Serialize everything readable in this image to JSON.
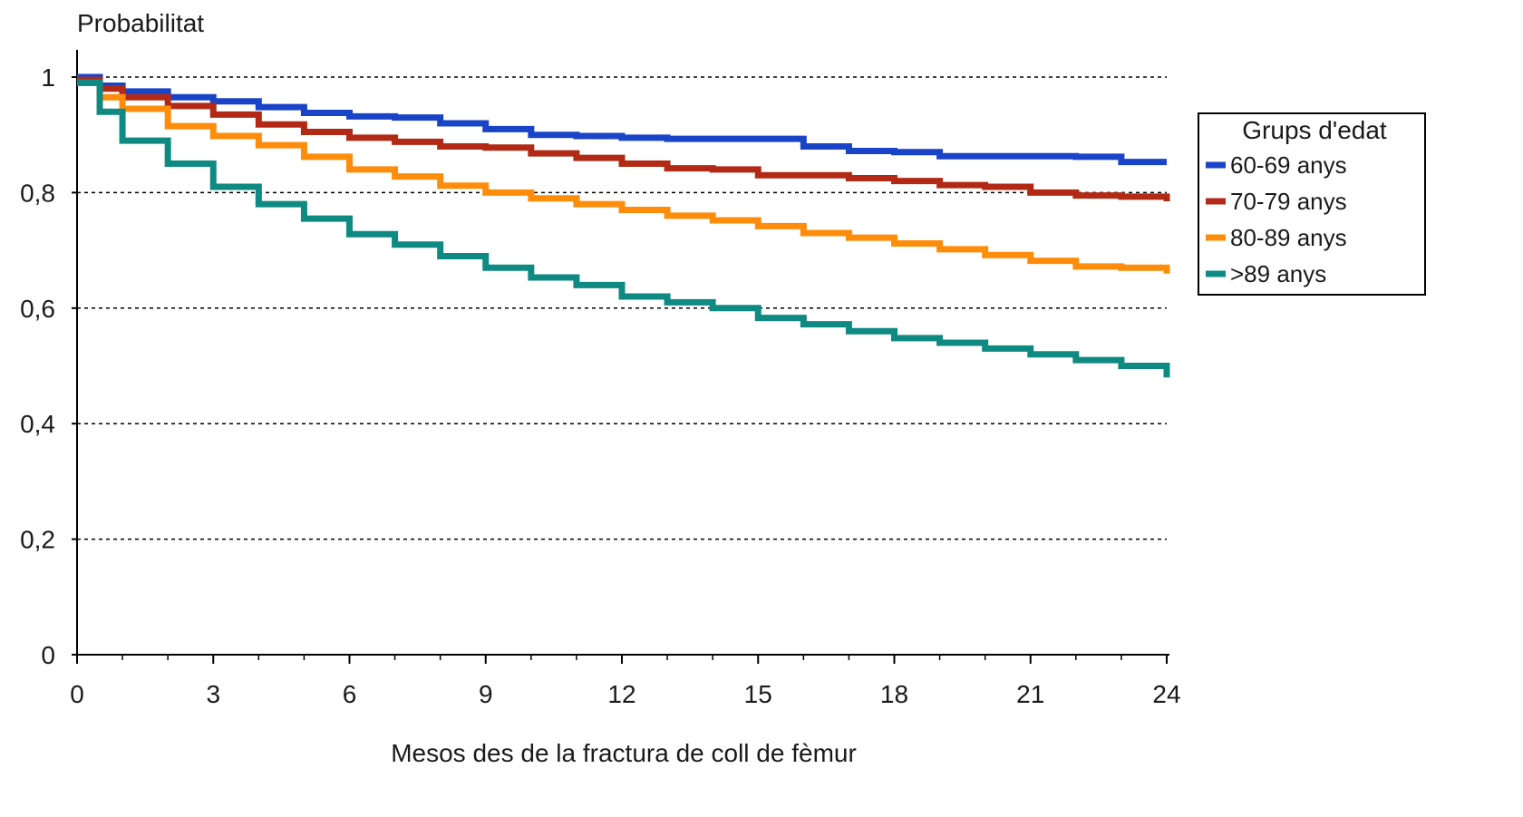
{
  "chart_data": {
    "type": "line",
    "ylabel": "Probabilitat",
    "xlabel": "Mesos des de la fractura de coll de fèmur",
    "xlim": [
      0,
      24
    ],
    "ylim": [
      0,
      1
    ],
    "x_ticks": [
      "0",
      "3",
      "6",
      "9",
      "12",
      "15",
      "18",
      "21",
      "24"
    ],
    "y_ticks": [
      "0",
      "0,2",
      "0,4",
      "0,6",
      "0,8",
      "1"
    ],
    "grid": "horizontal dashed",
    "legend": {
      "title": "Grups d'edat",
      "position": "right"
    },
    "series": [
      {
        "name": "60-69 anys",
        "color": "#1a44c8",
        "points": [
          [
            0,
            1.0
          ],
          [
            0.5,
            0.985
          ],
          [
            1,
            0.975
          ],
          [
            2,
            0.965
          ],
          [
            3,
            0.958
          ],
          [
            4,
            0.948
          ],
          [
            5,
            0.938
          ],
          [
            6,
            0.932
          ],
          [
            7,
            0.93
          ],
          [
            8,
            0.92
          ],
          [
            9,
            0.91
          ],
          [
            10,
            0.9
          ],
          [
            11,
            0.898
          ],
          [
            12,
            0.895
          ],
          [
            13,
            0.893
          ],
          [
            14,
            0.893
          ],
          [
            15,
            0.893
          ],
          [
            16,
            0.88
          ],
          [
            17,
            0.872
          ],
          [
            18,
            0.87
          ],
          [
            19,
            0.863
          ],
          [
            20,
            0.863
          ],
          [
            21,
            0.863
          ],
          [
            22,
            0.862
          ],
          [
            23,
            0.853
          ],
          [
            24,
            0.853
          ]
        ]
      },
      {
        "name": "70-79 anys",
        "color": "#b22a16",
        "points": [
          [
            0,
            0.995
          ],
          [
            0.5,
            0.98
          ],
          [
            1,
            0.965
          ],
          [
            2,
            0.95
          ],
          [
            3,
            0.935
          ],
          [
            4,
            0.918
          ],
          [
            5,
            0.905
          ],
          [
            6,
            0.895
          ],
          [
            7,
            0.888
          ],
          [
            8,
            0.88
          ],
          [
            9,
            0.878
          ],
          [
            10,
            0.868
          ],
          [
            11,
            0.86
          ],
          [
            12,
            0.85
          ],
          [
            13,
            0.842
          ],
          [
            14,
            0.84
          ],
          [
            15,
            0.83
          ],
          [
            16,
            0.83
          ],
          [
            17,
            0.825
          ],
          [
            18,
            0.82
          ],
          [
            19,
            0.813
          ],
          [
            20,
            0.81
          ],
          [
            21,
            0.8
          ],
          [
            22,
            0.795
          ],
          [
            23,
            0.793
          ],
          [
            24,
            0.785
          ]
        ]
      },
      {
        "name": "80-89 anys",
        "color": "#ff8c0a",
        "points": [
          [
            0,
            0.99
          ],
          [
            0.5,
            0.965
          ],
          [
            1,
            0.945
          ],
          [
            2,
            0.915
          ],
          [
            3,
            0.898
          ],
          [
            4,
            0.882
          ],
          [
            5,
            0.862
          ],
          [
            6,
            0.84
          ],
          [
            7,
            0.828
          ],
          [
            8,
            0.812
          ],
          [
            9,
            0.8
          ],
          [
            10,
            0.79
          ],
          [
            11,
            0.78
          ],
          [
            12,
            0.77
          ],
          [
            13,
            0.76
          ],
          [
            14,
            0.752
          ],
          [
            15,
            0.742
          ],
          [
            16,
            0.73
          ],
          [
            17,
            0.722
          ],
          [
            18,
            0.712
          ],
          [
            19,
            0.702
          ],
          [
            20,
            0.692
          ],
          [
            21,
            0.682
          ],
          [
            22,
            0.672
          ],
          [
            23,
            0.67
          ],
          [
            24,
            0.66
          ]
        ]
      },
      {
        "name": ">89 anys",
        "color": "#0e8a82",
        "points": [
          [
            0,
            0.99
          ],
          [
            0.5,
            0.94
          ],
          [
            1,
            0.89
          ],
          [
            2,
            0.85
          ],
          [
            3,
            0.81
          ],
          [
            4,
            0.78
          ],
          [
            5,
            0.755
          ],
          [
            6,
            0.728
          ],
          [
            7,
            0.71
          ],
          [
            8,
            0.69
          ],
          [
            9,
            0.67
          ],
          [
            10,
            0.653
          ],
          [
            11,
            0.64
          ],
          [
            12,
            0.62
          ],
          [
            13,
            0.61
          ],
          [
            14,
            0.6
          ],
          [
            15,
            0.583
          ],
          [
            16,
            0.572
          ],
          [
            17,
            0.56
          ],
          [
            18,
            0.548
          ],
          [
            19,
            0.54
          ],
          [
            20,
            0.53
          ],
          [
            21,
            0.52
          ],
          [
            22,
            0.51
          ],
          [
            23,
            0.5
          ],
          [
            24,
            0.48
          ]
        ]
      }
    ]
  }
}
